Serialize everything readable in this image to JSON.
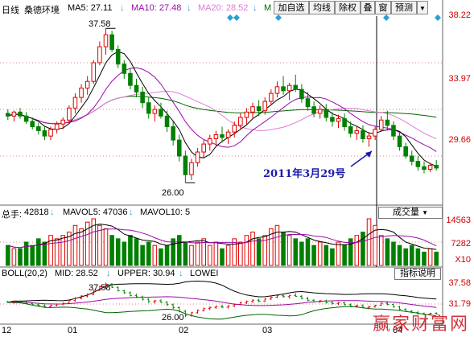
{
  "header": {
    "period": "日线",
    "stock_name": "桑德环境",
    "ma5": "MA5: 27.11",
    "ma10": "MA10: 27.48",
    "ma20": "MA20: 28.52",
    "ma_cut": "M",
    "toolbar": [
      "加自选",
      "均线",
      "除权",
      "叠",
      "窗",
      "预测"
    ],
    "dropdown_icon": "triangle-down-icon"
  },
  "price_axis": [
    "38.22",
    "33.97",
    "29.66",
    "25.35"
  ],
  "price_annotations": {
    "high": "37.58",
    "low": "26.00",
    "date_note": "2011年3月29号"
  },
  "volume_panel": {
    "title_prefix": "总手:",
    "total": "42818",
    "mavol5": "MAVOL5: 47036",
    "mavol10": "MAVOL10: 5",
    "selector": "成交量",
    "axis": [
      "14563",
      "7282"
    ],
    "unit": "X10"
  },
  "boll_panel": {
    "title": "BOLL(20,2)",
    "mid": "MID: 28.52",
    "upper": "UPPER: 30.94",
    "lower": "LOWEI",
    "selector": "指标说明",
    "axis": [
      "37.58",
      "31.79"
    ],
    "high": "37.58",
    "low": "26.00"
  },
  "x_axis": [
    "12",
    "01",
    "02",
    "03",
    "04"
  ],
  "watermark": "赢家财富网",
  "colors": {
    "up": "#e00000",
    "down": "#008000",
    "ma5": "#000000",
    "ma10": "#9b0aa6",
    "ma20": "#e07bd8",
    "ma60": "#006600",
    "axis_text": "#d00000",
    "diamond": "#2a9fd6"
  },
  "chart_data": {
    "type": "candlestick",
    "price_range": [
      24.5,
      38.5
    ],
    "candles": [
      [
        31.2,
        31.5,
        30.7,
        31.0
      ],
      [
        31.0,
        31.4,
        30.6,
        31.3
      ],
      [
        31.3,
        31.6,
        30.8,
        31.0
      ],
      [
        31.0,
        31.3,
        30.4,
        30.6
      ],
      [
        30.6,
        30.9,
        30.0,
        30.2
      ],
      [
        30.2,
        30.5,
        29.6,
        29.9
      ],
      [
        29.9,
        30.3,
        29.2,
        29.5
      ],
      [
        29.5,
        30.2,
        29.2,
        30.0
      ],
      [
        30.0,
        30.6,
        29.7,
        30.4
      ],
      [
        30.4,
        30.9,
        30.0,
        30.7
      ],
      [
        30.7,
        31.8,
        30.5,
        31.6
      ],
      [
        31.6,
        32.7,
        31.2,
        32.4
      ],
      [
        32.4,
        33.4,
        32.0,
        33.1
      ],
      [
        33.1,
        34.0,
        32.6,
        33.6
      ],
      [
        33.6,
        35.2,
        33.4,
        35.0
      ],
      [
        35.0,
        36.6,
        34.8,
        36.2
      ],
      [
        36.2,
        37.58,
        35.6,
        37.1
      ],
      [
        37.1,
        37.4,
        35.8,
        36.0
      ],
      [
        36.0,
        36.3,
        34.6,
        34.9
      ],
      [
        34.9,
        35.2,
        33.8,
        34.2
      ],
      [
        34.2,
        34.6,
        33.0,
        33.3
      ],
      [
        33.3,
        33.8,
        32.4,
        32.8
      ],
      [
        32.8,
        33.2,
        31.6,
        32.0
      ],
      [
        32.0,
        32.4,
        30.8,
        31.2
      ],
      [
        31.2,
        31.8,
        30.6,
        31.5
      ],
      [
        31.5,
        32.0,
        30.8,
        31.0
      ],
      [
        31.0,
        31.4,
        29.8,
        30.2
      ],
      [
        30.2,
        30.6,
        28.8,
        29.2
      ],
      [
        29.2,
        29.6,
        27.6,
        28.0
      ],
      [
        28.0,
        28.4,
        26.0,
        26.6
      ],
      [
        26.6,
        27.8,
        26.2,
        27.5
      ],
      [
        27.5,
        28.6,
        27.2,
        28.3
      ],
      [
        28.3,
        29.2,
        27.9,
        28.9
      ],
      [
        28.9,
        29.6,
        28.4,
        29.3
      ],
      [
        29.3,
        29.9,
        28.8,
        29.6
      ],
      [
        29.6,
        30.2,
        29.0,
        29.4
      ],
      [
        29.4,
        30.0,
        28.9,
        29.8
      ],
      [
        29.8,
        30.6,
        29.4,
        30.3
      ],
      [
        30.3,
        31.2,
        30.0,
        30.9
      ],
      [
        30.9,
        31.6,
        30.4,
        31.3
      ],
      [
        31.3,
        32.0,
        30.8,
        31.7
      ],
      [
        31.7,
        32.2,
        31.0,
        31.4
      ],
      [
        31.4,
        32.4,
        31.1,
        32.1
      ],
      [
        32.1,
        33.0,
        31.8,
        32.7
      ],
      [
        32.7,
        33.6,
        32.4,
        33.2
      ],
      [
        33.2,
        34.0,
        32.6,
        32.9
      ],
      [
        32.9,
        33.5,
        32.2,
        33.3
      ],
      [
        33.3,
        34.1,
        32.8,
        33.0
      ],
      [
        33.0,
        33.4,
        32.0,
        32.3
      ],
      [
        32.3,
        32.8,
        31.4,
        31.7
      ],
      [
        31.7,
        32.1,
        30.9,
        31.2
      ],
      [
        31.2,
        31.8,
        30.8,
        31.5
      ],
      [
        31.5,
        31.9,
        30.6,
        30.9
      ],
      [
        30.9,
        31.3,
        30.2,
        30.6
      ],
      [
        30.6,
        31.1,
        30.1,
        30.8
      ],
      [
        30.8,
        31.2,
        29.9,
        30.2
      ],
      [
        30.2,
        30.6,
        29.4,
        29.7
      ],
      [
        29.7,
        30.2,
        29.2,
        29.9
      ],
      [
        29.9,
        30.3,
        29.0,
        29.3
      ],
      [
        29.3,
        29.8,
        28.7,
        29.5
      ],
      [
        29.5,
        30.2,
        29.2,
        30.0
      ],
      [
        30.0,
        31.0,
        29.8,
        30.7
      ],
      [
        30.7,
        31.4,
        30.0,
        30.3
      ],
      [
        30.3,
        30.6,
        29.2,
        29.5
      ],
      [
        29.5,
        29.8,
        28.4,
        28.7
      ],
      [
        28.7,
        29.0,
        27.8,
        28.0
      ],
      [
        28.0,
        28.4,
        27.3,
        27.6
      ],
      [
        27.6,
        28.0,
        26.9,
        27.2
      ],
      [
        27.2,
        27.6,
        26.7,
        27.0
      ],
      [
        27.0,
        27.5,
        26.8,
        27.3
      ],
      [
        27.3,
        27.7,
        26.9,
        27.1
      ]
    ],
    "volumes": [
      6,
      5,
      5,
      7,
      6,
      8,
      7,
      9,
      8,
      9,
      10,
      12,
      11,
      13,
      14,
      12,
      11,
      9,
      8,
      7,
      9,
      8,
      6,
      7,
      6,
      5,
      6,
      8,
      9,
      7,
      6,
      7,
      8,
      6,
      7,
      5,
      6,
      8,
      7,
      9,
      10,
      8,
      9,
      11,
      12,
      10,
      9,
      8,
      7,
      8,
      6,
      7,
      6,
      5,
      7,
      6,
      8,
      9,
      10,
      14,
      12,
      9,
      8,
      7,
      6,
      5,
      6,
      5,
      4,
      5,
      4
    ],
    "marks": {
      "high": 37.58,
      "low": 26.0
    }
  }
}
